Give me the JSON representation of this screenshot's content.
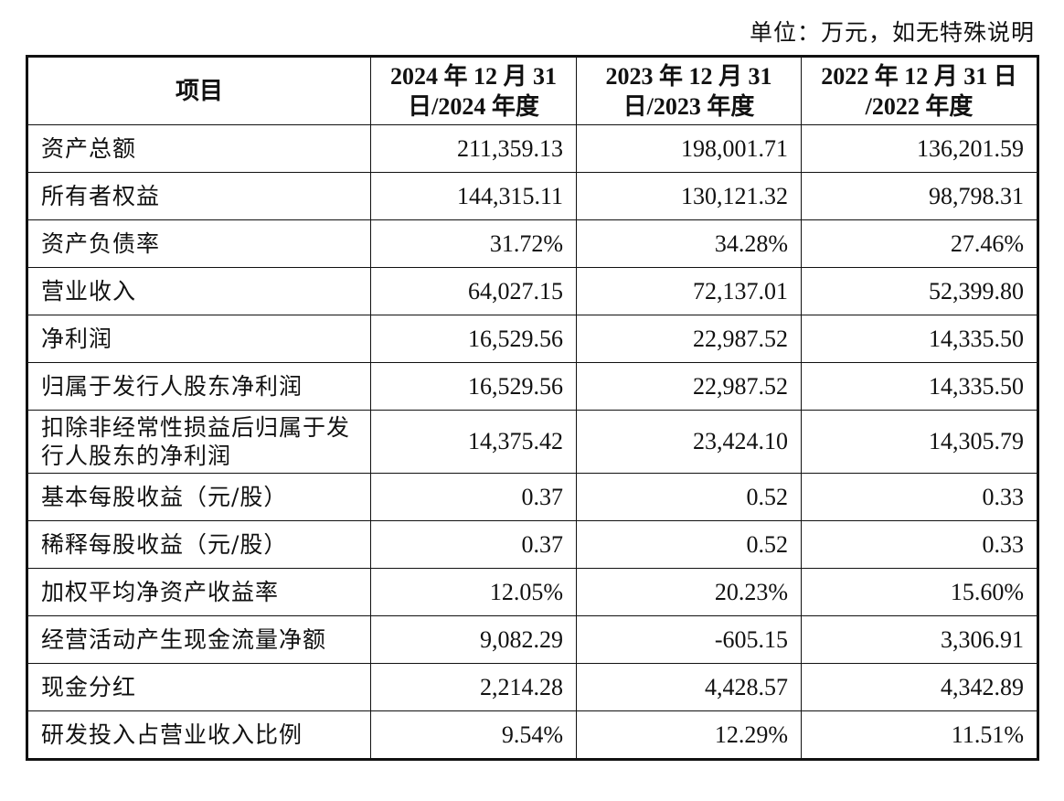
{
  "unit_note": "单位：万元，如无特殊说明",
  "table": {
    "headers": {
      "item": "项目",
      "col2024": [
        "2024 年 12 月 31",
        "日/2024 年度"
      ],
      "col2023": [
        "2023 年 12 月 31",
        "日/2023 年度"
      ],
      "col2022": [
        "2022 年 12 月 31 日",
        "/2022 年度"
      ]
    },
    "rows": [
      {
        "label": "资产总额",
        "v2024": "211,359.13",
        "v2023": "198,001.71",
        "v2022": "136,201.59"
      },
      {
        "label": "所有者权益",
        "v2024": "144,315.11",
        "v2023": "130,121.32",
        "v2022": "98,798.31"
      },
      {
        "label": "资产负债率",
        "v2024": "31.72%",
        "v2023": "34.28%",
        "v2022": "27.46%"
      },
      {
        "label": "营业收入",
        "v2024": "64,027.15",
        "v2023": "72,137.01",
        "v2022": "52,399.80"
      },
      {
        "label": "净利润",
        "v2024": "16,529.56",
        "v2023": "22,987.52",
        "v2022": "14,335.50"
      },
      {
        "label": "归属于发行人股东净利润",
        "v2024": "16,529.56",
        "v2023": "22,987.52",
        "v2022": "14,335.50"
      },
      {
        "label": "扣除非经常性损益后归属于发行人股东的净利润",
        "v2024": "14,375.42",
        "v2023": "23,424.10",
        "v2022": "14,305.79"
      },
      {
        "label": "基本每股收益（元/股）",
        "v2024": "0.37",
        "v2023": "0.52",
        "v2022": "0.33"
      },
      {
        "label": "稀释每股收益（元/股）",
        "v2024": "0.37",
        "v2023": "0.52",
        "v2022": "0.33"
      },
      {
        "label": "加权平均净资产收益率",
        "v2024": "12.05%",
        "v2023": "20.23%",
        "v2022": "15.60%"
      },
      {
        "label": "经营活动产生现金流量净额",
        "v2024": "9,082.29",
        "v2023": "-605.15",
        "v2022": "3,306.91"
      },
      {
        "label": "现金分红",
        "v2024": "2,214.28",
        "v2023": "4,428.57",
        "v2022": "4,342.89"
      },
      {
        "label": "研发投入占营业收入比例",
        "v2024": "9.54%",
        "v2023": "12.29%",
        "v2022": "11.51%"
      }
    ]
  }
}
